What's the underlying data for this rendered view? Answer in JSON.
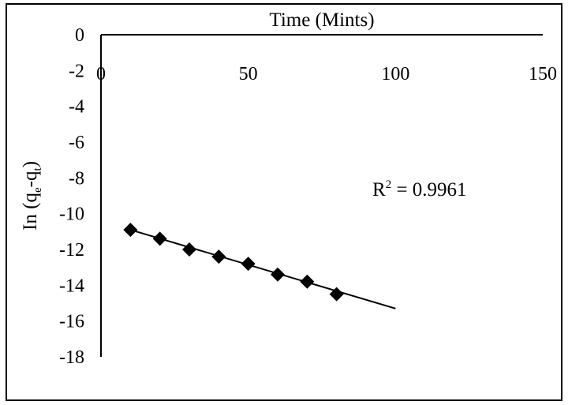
{
  "chart_data": {
    "type": "scatter",
    "xlabel": "Time (Mints)",
    "ylabel": "In (q",
    "ylabel_sub_e": "e",
    "ylabel_mid": "-q",
    "ylabel_sub_t": "t",
    "ylabel_close": ")",
    "xlim": [
      0,
      150
    ],
    "ylim": [
      -18,
      0
    ],
    "x_ticks": [
      0,
      50,
      100,
      150
    ],
    "y_ticks": [
      0,
      -2,
      -4,
      -6,
      -8,
      -10,
      -12,
      -14,
      -16,
      -18
    ],
    "x_tick_labels": [
      "0",
      "50",
      "100",
      "150"
    ],
    "y_tick_labels": [
      "0",
      "-2",
      "-4",
      "-6",
      "-8",
      "-10",
      "-12",
      "-14",
      "-16",
      "-18"
    ],
    "x_axis_position": "top",
    "grid": false,
    "legend": false,
    "series": [
      {
        "x": [
          10,
          20,
          30,
          40,
          50,
          60,
          70,
          80
        ],
        "y": [
          -10.9,
          -11.4,
          -12.0,
          -12.4,
          -12.8,
          -13.4,
          -13.8,
          -14.5
        ],
        "marker": "diamond",
        "color": "#000000"
      }
    ],
    "trendline": {
      "x": [
        10,
        100
      ],
      "y": [
        -10.9,
        -15.3
      ]
    },
    "annotation_r2_base": "R",
    "annotation_r2_sup": "2",
    "annotation_r2_value": " = 0.9961"
  }
}
